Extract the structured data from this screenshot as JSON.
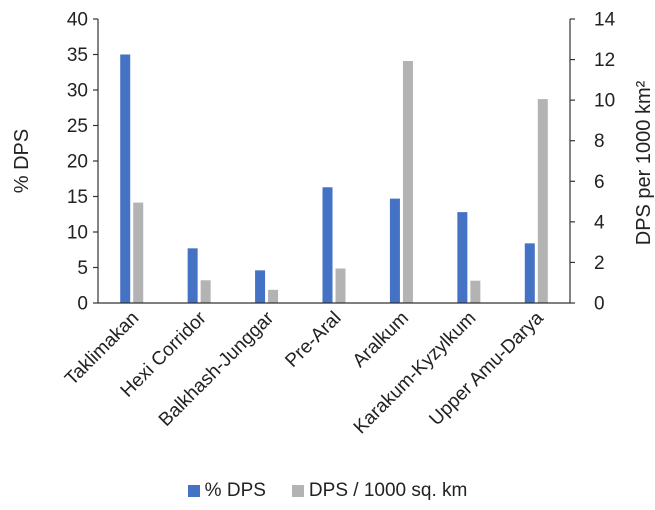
{
  "chart_data": {
    "type": "bar",
    "categories": [
      "Taklimakan",
      "Hexi Corridor",
      "Balkhash-Junggar",
      "Pre-Aral",
      "Aralkum",
      "Karakum-Kyzylkum",
      "Upper Amu-Darya"
    ],
    "series": [
      {
        "name": "% DPS",
        "axis": "left",
        "color": "#4472C4",
        "values": [
          35.0,
          7.7,
          4.6,
          16.3,
          14.7,
          12.8,
          8.4
        ]
      },
      {
        "name": "DPS / 1000 sq. km",
        "axis": "right",
        "color": "#B3B3B3",
        "values": [
          4.95,
          1.12,
          0.65,
          1.7,
          11.93,
          1.1,
          10.05
        ]
      }
    ],
    "y_left": {
      "label": "% DPS",
      "ylim": [
        0,
        40
      ],
      "ticks": [
        "0",
        "5",
        "10",
        "15",
        "20",
        "25",
        "30",
        "35",
        "40"
      ]
    },
    "y_right": {
      "label": "DPS per 1000 km²",
      "ylim": [
        0,
        14
      ],
      "ticks": [
        "0",
        "2",
        "4",
        "6",
        "8",
        "10",
        "12",
        "14"
      ]
    },
    "grid": false,
    "legend_position": "bottom"
  }
}
